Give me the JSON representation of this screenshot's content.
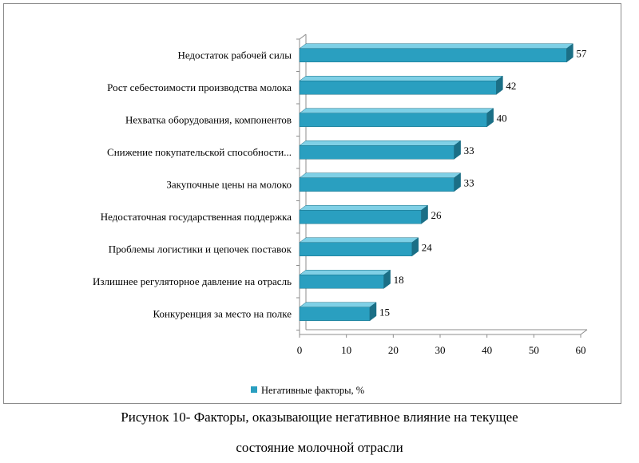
{
  "chart_data": {
    "type": "bar",
    "orientation": "horizontal",
    "categories": [
      "Недостаток рабочей силы",
      "Рост себестоимости производства молока",
      "Нехватка оборудования, компонентов",
      "Снижение покупательской способности...",
      "Закупочные цены на молоко",
      "Недостаточная государственная поддержка",
      "Проблемы логистики и цепочек поставок",
      "Излишнее регуляторное давление на отрасль",
      "Конкуренция за место на полке"
    ],
    "series": [
      {
        "name": "Негативные факторы, %",
        "values": [
          57,
          42,
          40,
          33,
          33,
          26,
          24,
          18,
          15
        ]
      }
    ],
    "xlim": [
      0,
      60
    ],
    "x_ticks": [
      0,
      10,
      20,
      30,
      40,
      50,
      60
    ],
    "grid": false,
    "legend": "bottom",
    "style": "3d",
    "colors": {
      "bar": "#2a9fc0",
      "bar_top": "#7fd0e6",
      "bar_side": "#1b6f86"
    }
  },
  "caption": {
    "line1": "Рисунок 10- Факторы, оказывающие негативное влияние на текущее",
    "line2": "состояние молочной отрасли"
  }
}
